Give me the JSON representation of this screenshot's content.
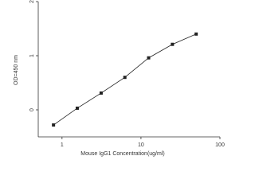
{
  "chart_data": {
    "type": "line",
    "log_x": true,
    "x_label": "Mouse IgG1 Concentration(ug/ml)",
    "y_label": "OD=450 nm",
    "x": [
      0.78,
      1.56,
      3.13,
      6.25,
      12.5,
      25,
      50
    ],
    "series": [
      {
        "color": "#222222",
        "values": [
          -0.28,
          0.03,
          0.31,
          0.6,
          0.96,
          1.21,
          1.4
        ]
      }
    ],
    "xlim": [
      0.5,
      100
    ],
    "xticks": [
      1,
      10,
      100
    ],
    "ylim": [
      -0.5,
      2
    ],
    "yticks": [
      0,
      1,
      2
    ]
  }
}
